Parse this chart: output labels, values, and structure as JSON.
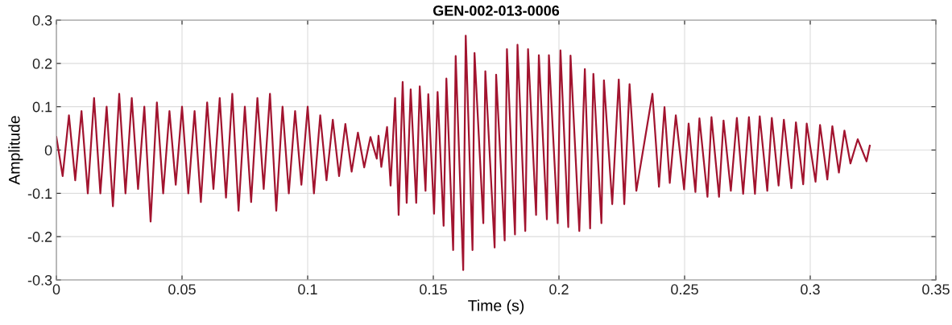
{
  "chart_data": {
    "type": "line",
    "title": "GEN-002-013-0006",
    "xlabel": "Time (s)",
    "ylabel": "Amplitude",
    "xlim": [
      0,
      0.35
    ],
    "xticks": [
      0,
      0.05,
      0.1,
      0.15,
      0.2,
      0.25,
      0.3,
      0.35
    ],
    "ylim": [
      -0.3,
      0.3
    ],
    "yticks": [
      -0.3,
      -0.2,
      -0.1,
      0,
      0.1,
      0.2,
      0.3
    ],
    "grid": true,
    "line_style": "solid",
    "marker": "none",
    "series": [
      {
        "color": "#a2142f",
        "x": [
          0,
          0.0025,
          0.005,
          0.0075,
          0.01,
          0.0125,
          0.015,
          0.0175,
          0.02,
          0.0225,
          0.025,
          0.0275,
          0.03,
          0.0325,
          0.035,
          0.0375,
          0.04,
          0.0425,
          0.045,
          0.0475,
          0.05,
          0.0525,
          0.055,
          0.0575,
          0.06,
          0.0625,
          0.065,
          0.0675,
          0.07,
          0.0725,
          0.075,
          0.0775,
          0.08,
          0.0825,
          0.085,
          0.0875,
          0.09,
          0.0925,
          0.095,
          0.0975,
          0.1,
          0.1025,
          0.105,
          0.1075,
          0.11,
          0.1125,
          0.115,
          0.1175,
          0.12,
          0.1225,
          0.125,
          0.1275,
          0.1282,
          0.1293,
          0.1316,
          0.133,
          0.1348,
          0.1362,
          0.1378,
          0.1394,
          0.141,
          0.1432,
          0.1446,
          0.1469,
          0.148,
          0.1503,
          0.1517,
          0.1541,
          0.1552,
          0.1579,
          0.1589,
          0.1619,
          0.1629,
          0.1656,
          0.1664,
          0.1699,
          0.1707,
          0.1744,
          0.175,
          0.1784,
          0.1793,
          0.1825,
          0.1835,
          0.1866,
          0.1877,
          0.1909,
          0.192,
          0.1952,
          0.196,
          0.1995,
          0.2006,
          0.2037,
          0.2046,
          0.2081,
          0.2103,
          0.2124,
          0.2137,
          0.2169,
          0.2179,
          0.2212,
          0.2238,
          0.226,
          0.2281,
          0.2308,
          0.2372,
          0.2398,
          0.242,
          0.2441,
          0.2465,
          0.2498,
          0.2516,
          0.2543,
          0.2559,
          0.2591,
          0.2607,
          0.2637,
          0.2655,
          0.2684,
          0.2708,
          0.2733,
          0.2756,
          0.278,
          0.2799,
          0.2829,
          0.2847,
          0.2874,
          0.2895,
          0.2925,
          0.2943,
          0.2972,
          0.2986,
          0.3021,
          0.3039,
          0.3068,
          0.3088,
          0.3114,
          0.3136,
          0.316,
          0.3189,
          0.3224,
          0.3237
        ],
        "values": [
          0.03,
          -0.06,
          0.08,
          -0.07,
          0.09,
          -0.1,
          0.12,
          -0.1,
          0.1,
          -0.13,
          0.13,
          -0.1,
          0.12,
          -0.09,
          0.1,
          -0.165,
          0.11,
          -0.1,
          0.09,
          -0.08,
          0.1,
          -0.1,
          0.09,
          -0.12,
          0.11,
          -0.09,
          0.12,
          -0.11,
          0.13,
          -0.14,
          0.1,
          -0.12,
          0.12,
          -0.09,
          0.13,
          -0.14,
          0.1,
          -0.1,
          0.09,
          -0.08,
          0.1,
          -0.1,
          0.08,
          -0.07,
          0.07,
          -0.06,
          0.06,
          -0.05,
          0.04,
          -0.04,
          0.03,
          -0.02,
          0.033,
          -0.039,
          0.053,
          -0.082,
          0.12,
          -0.15,
          0.157,
          -0.122,
          0.14,
          -0.122,
          0.147,
          -0.094,
          0.129,
          -0.147,
          0.134,
          -0.175,
          0.165,
          -0.231,
          0.217,
          -0.277,
          0.264,
          -0.231,
          0.224,
          -0.169,
          0.182,
          -0.225,
          0.174,
          -0.209,
          0.233,
          -0.195,
          0.243,
          -0.187,
          0.233,
          -0.15,
          0.219,
          -0.16,
          0.219,
          -0.169,
          0.23,
          -0.178,
          0.218,
          -0.187,
          0.187,
          -0.181,
          0.176,
          -0.169,
          0.161,
          -0.125,
          0.163,
          -0.125,
          0.152,
          -0.094,
          0.13,
          -0.085,
          0.099,
          -0.076,
          0.08,
          -0.091,
          0.061,
          -0.097,
          0.073,
          -0.108,
          0.076,
          -0.108,
          0.068,
          -0.094,
          0.074,
          -0.101,
          0.076,
          -0.101,
          0.078,
          -0.094,
          0.074,
          -0.082,
          0.07,
          -0.088,
          0.064,
          -0.079,
          0.061,
          -0.073,
          0.058,
          -0.068,
          0.055,
          -0.052,
          0.045,
          -0.031,
          0.025,
          -0.026,
          0.01
        ]
      }
    ]
  }
}
